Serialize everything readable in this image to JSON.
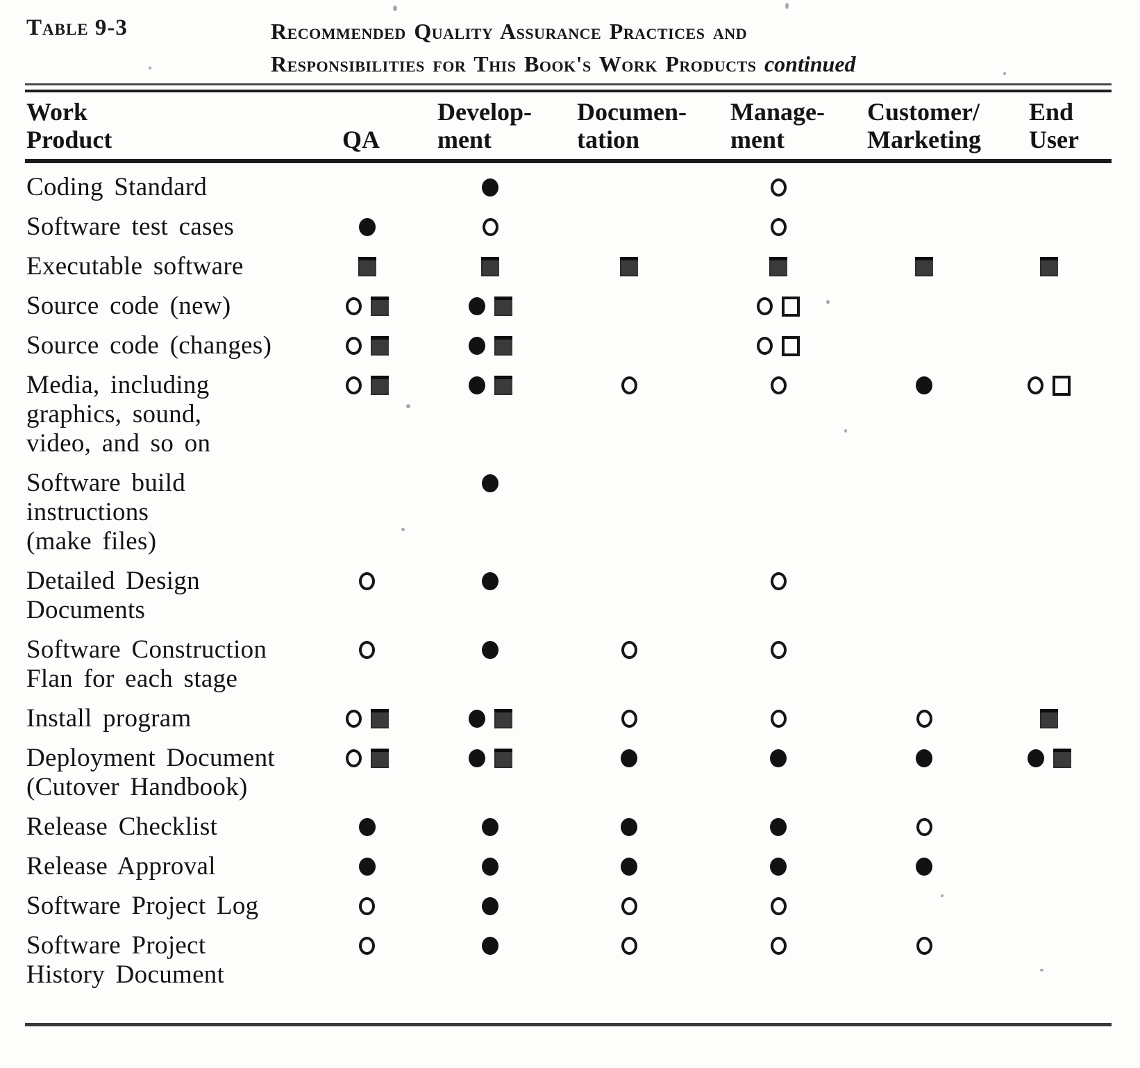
{
  "page": {
    "table_label": "Table 9-3",
    "title_line1": "Recommended Quality Assurance Practices and",
    "title_line2": "Responsibilities for This Book's Work Products",
    "title_suffix": "continued"
  },
  "table": {
    "header": {
      "work_product": [
        "Work",
        "Product"
      ],
      "qa": [
        "",
        "QA"
      ],
      "development": [
        "Develop-",
        "ment"
      ],
      "documentation": [
        "Documen-",
        "tation"
      ],
      "management": [
        "Manage-",
        "ment"
      ],
      "customer_marketing": [
        "Customer/",
        "Marketing"
      ],
      "end_user": [
        "End",
        "User"
      ]
    },
    "rows": [
      {
        "label_lines": [
          "Coding Standard"
        ],
        "qa": [],
        "development": [
          "filled-circle"
        ],
        "documentation": [],
        "management": [
          "open-circle"
        ],
        "customer_marketing": [],
        "end_user": []
      },
      {
        "label_lines": [
          "Software test cases"
        ],
        "qa": [
          "filled-circle"
        ],
        "development": [
          "open-circle"
        ],
        "documentation": [],
        "management": [
          "open-circle"
        ],
        "customer_marketing": [],
        "end_user": []
      },
      {
        "label_lines": [
          "Executable software"
        ],
        "qa": [
          "filled-square"
        ],
        "development": [
          "filled-square"
        ],
        "documentation": [
          "filled-square"
        ],
        "management": [
          "filled-square"
        ],
        "customer_marketing": [
          "filled-square"
        ],
        "end_user": [
          "filled-square"
        ]
      },
      {
        "label_lines": [
          "Source code (new)"
        ],
        "qa": [
          "open-circle",
          "filled-square"
        ],
        "development": [
          "filled-circle",
          "filled-square"
        ],
        "documentation": [],
        "management": [
          "open-circle",
          "open-square"
        ],
        "customer_marketing": [],
        "end_user": []
      },
      {
        "label_lines": [
          "Source code (changes)"
        ],
        "qa": [
          "open-circle",
          "filled-square"
        ],
        "development": [
          "filled-circle",
          "filled-square"
        ],
        "documentation": [],
        "management": [
          "open-circle",
          "open-square"
        ],
        "customer_marketing": [],
        "end_user": []
      },
      {
        "label_lines": [
          "Media, including",
          "graphics, sound,",
          "video, and so on"
        ],
        "qa": [
          "open-circle",
          "filled-square"
        ],
        "development": [
          "filled-circle",
          "filled-square"
        ],
        "documentation": [
          "open-circle"
        ],
        "management": [
          "open-circle"
        ],
        "customer_marketing": [
          "filled-circle"
        ],
        "end_user": [
          "open-circle",
          "open-square"
        ]
      },
      {
        "label_lines": [
          "Software build",
          "instructions",
          "(make files)"
        ],
        "qa": [],
        "development": [
          "filled-circle"
        ],
        "documentation": [],
        "management": [],
        "customer_marketing": [],
        "end_user": []
      },
      {
        "label_lines": [
          "Detailed Design",
          "Documents"
        ],
        "qa": [
          "open-circle"
        ],
        "development": [
          "filled-circle"
        ],
        "documentation": [],
        "management": [
          "open-circle"
        ],
        "customer_marketing": [],
        "end_user": []
      },
      {
        "label_lines": [
          "Software Construction",
          "Flan for each stage"
        ],
        "qa": [
          "open-circle"
        ],
        "development": [
          "filled-circle"
        ],
        "documentation": [
          "open-circle"
        ],
        "management": [
          "open-circle"
        ],
        "customer_marketing": [],
        "end_user": []
      },
      {
        "label_lines": [
          "Install program"
        ],
        "qa": [
          "open-circle",
          "filled-square"
        ],
        "development": [
          "filled-circle",
          "filled-square"
        ],
        "documentation": [
          "open-circle"
        ],
        "management": [
          "open-circle"
        ],
        "customer_marketing": [
          "open-circle"
        ],
        "end_user": [
          "filled-square"
        ]
      },
      {
        "label_lines": [
          "Deployment Document",
          "(Cutover Handbook)"
        ],
        "qa": [
          "open-circle",
          "filled-square"
        ],
        "development": [
          "filled-circle",
          "filled-square"
        ],
        "documentation": [
          "filled-circle"
        ],
        "management": [
          "filled-circle"
        ],
        "customer_marketing": [
          "filled-circle"
        ],
        "end_user": [
          "filled-circle",
          "filled-square"
        ]
      },
      {
        "label_lines": [
          "Release Checklist"
        ],
        "qa": [
          "filled-circle"
        ],
        "development": [
          "filled-circle"
        ],
        "documentation": [
          "filled-circle"
        ],
        "management": [
          "filled-circle"
        ],
        "customer_marketing": [
          "open-circle"
        ],
        "end_user": []
      },
      {
        "label_lines": [
          "Release Approval"
        ],
        "qa": [
          "filled-circle"
        ],
        "development": [
          "filled-circle"
        ],
        "documentation": [
          "filled-circle"
        ],
        "management": [
          "filled-circle"
        ],
        "customer_marketing": [
          "filled-circle"
        ],
        "end_user": []
      },
      {
        "label_lines": [
          "Software Project Log"
        ],
        "qa": [
          "open-circle"
        ],
        "development": [
          "filled-circle"
        ],
        "documentation": [
          "open-circle"
        ],
        "management": [
          "open-circle"
        ],
        "customer_marketing": [],
        "end_user": []
      },
      {
        "label_lines": [
          "Software Project",
          "History Document"
        ],
        "qa": [
          "open-circle"
        ],
        "development": [
          "filled-circle"
        ],
        "documentation": [
          "open-circle"
        ],
        "management": [
          "open-circle"
        ],
        "customer_marketing": [
          "open-circle"
        ],
        "end_user": []
      }
    ]
  }
}
